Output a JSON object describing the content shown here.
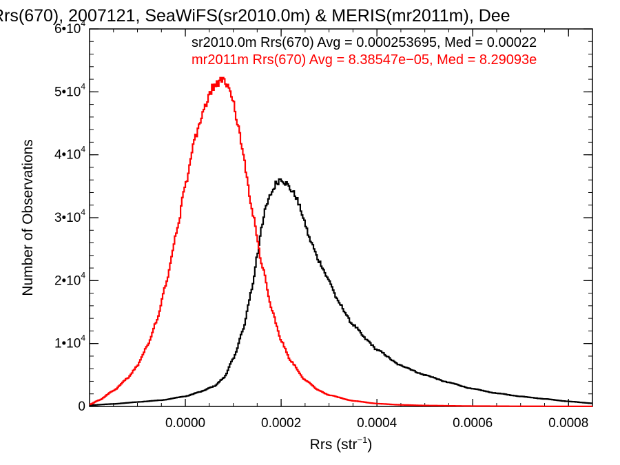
{
  "chart_data": {
    "type": "line",
    "title": "Rrs(670), 2007121, SeaWiFS(sr2010.0m) & MERIS(mr2011m), Dee",
    "xlabel_base": "Rrs (str",
    "xlabel_sup": "−1",
    "xlabel_close": ")",
    "ylabel": "Number of Observations",
    "xlim": [
      -0.0002,
      0.00085
    ],
    "ylim": [
      0,
      60000
    ],
    "x_ticks": [
      {
        "value": 0.0,
        "label": "0.0000"
      },
      {
        "value": 0.0002,
        "label": "0.0002"
      },
      {
        "value": 0.0004,
        "label": "0.0004"
      },
      {
        "value": 0.0006,
        "label": "0.0006"
      },
      {
        "value": 0.0008,
        "label": "0.0008"
      }
    ],
    "y_ticks": [
      {
        "value": 0,
        "base": "0",
        "exp": ""
      },
      {
        "value": 10000,
        "base": "1•10",
        "exp": "4"
      },
      {
        "value": 20000,
        "base": "2•10",
        "exp": "4"
      },
      {
        "value": 30000,
        "base": "3•10",
        "exp": "4"
      },
      {
        "value": 40000,
        "base": "4•10",
        "exp": "4"
      },
      {
        "value": 50000,
        "base": "5•10",
        "exp": "4"
      },
      {
        "value": 60000,
        "base": "6•10",
        "exp": "4"
      }
    ],
    "grid": false,
    "legend_position": "top-right",
    "series": [
      {
        "name": "sr2010.0m",
        "legend": "sr2010.0m Rrs(670) Avg = 0.000253695, Med = 0.00022",
        "color": "#000000",
        "step": true,
        "x": [
          -0.0002,
          -0.00015,
          -0.0001,
          -5e-05,
          0.0,
          3e-05,
          6e-05,
          8e-05,
          0.0001,
          0.00012,
          0.00014,
          0.00015,
          0.00016,
          0.00017,
          0.00018,
          0.00019,
          0.0002,
          0.00021,
          0.00022,
          0.00023,
          0.00024,
          0.00025,
          0.00026,
          0.00028,
          0.0003,
          0.00032,
          0.00035,
          0.00038,
          0.0004,
          0.00045,
          0.0005,
          0.00055,
          0.0006,
          0.00065,
          0.0007,
          0.00075,
          0.0008,
          0.00085
        ],
        "y": [
          200,
          400,
          700,
          1000,
          1600,
          2300,
          3200,
          4500,
          7500,
          12000,
          19000,
          24000,
          29000,
          32000,
          34000,
          35500,
          36300,
          35500,
          34500,
          33500,
          31500,
          29000,
          26500,
          23000,
          20000,
          16500,
          13000,
          10500,
          9000,
          6500,
          5000,
          3800,
          2800,
          2100,
          1600,
          1200,
          800,
          500
        ]
      },
      {
        "name": "mr2011m",
        "legend": "mr2011m Rrs(670) Avg = 8.38547e−05, Med = 8.29093e",
        "color": "#ff0000",
        "step": true,
        "x": [
          -0.0002,
          -0.00018,
          -0.00015,
          -0.00012,
          -0.0001,
          -8e-05,
          -6e-05,
          -4e-05,
          -2e-05,
          0.0,
          2e-05,
          4e-05,
          6e-05,
          8e-05,
          9e-05,
          0.0001,
          0.00011,
          0.00012,
          0.00014,
          0.00016,
          0.00018,
          0.0002,
          0.00022,
          0.00025,
          0.00028,
          0.0003,
          0.00035,
          0.0004,
          0.00045,
          0.0005,
          0.0006,
          0.0007,
          0.0008,
          0.00085
        ],
        "y": [
          300,
          1000,
          2500,
          4500,
          6500,
          9500,
          13500,
          19500,
          27000,
          35000,
          42500,
          47500,
          51000,
          51800,
          51000,
          48500,
          45000,
          40000,
          31000,
          22500,
          15500,
          10500,
          7200,
          4200,
          2500,
          1800,
          900,
          450,
          250,
          150,
          60,
          30,
          15,
          10
        ]
      }
    ]
  }
}
